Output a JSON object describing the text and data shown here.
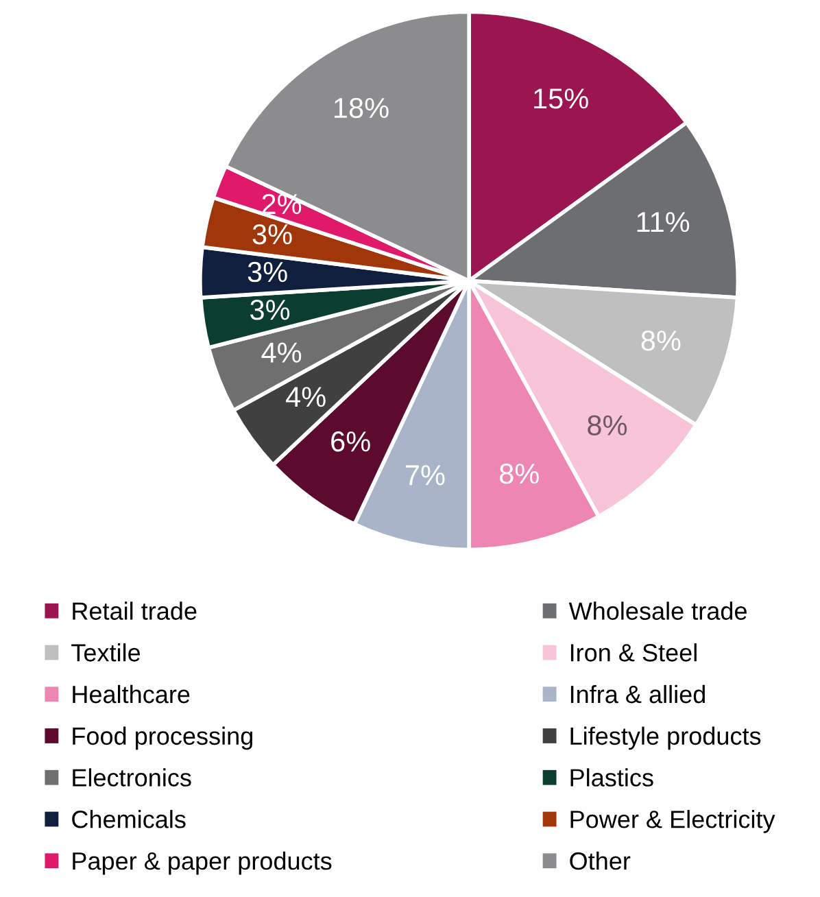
{
  "chart_data": {
    "type": "pie",
    "categories": [
      "Retail trade",
      "Wholesale trade",
      "Textile",
      "Iron & Steel",
      "Healthcare",
      "Infra & allied",
      "Food processing",
      "Lifestyle products",
      "Electronics",
      "Plastics",
      "Chemicals",
      "Power & Electricity",
      "Paper & paper products",
      "Other"
    ],
    "values": [
      15,
      11,
      8,
      8,
      8,
      7,
      6,
      4,
      4,
      3,
      3,
      3,
      2,
      18
    ],
    "colors": [
      "#9b1550",
      "#6d6e71",
      "#bfbfbf",
      "#f7c4d8",
      "#ee86b4",
      "#a9b4c8",
      "#5c0a2e",
      "#404040",
      "#6f6f6f",
      "#0b3d30",
      "#0f1f3d",
      "#a0360a",
      "#e0196b",
      "#8c8c8f"
    ],
    "value_labels": [
      "15%",
      "11%",
      "8%",
      "8%",
      "8%",
      "7%",
      "6%",
      "4%",
      "4%",
      "3%",
      "3%",
      "3%",
      "2%",
      "18%"
    ],
    "legend": "bottom"
  }
}
